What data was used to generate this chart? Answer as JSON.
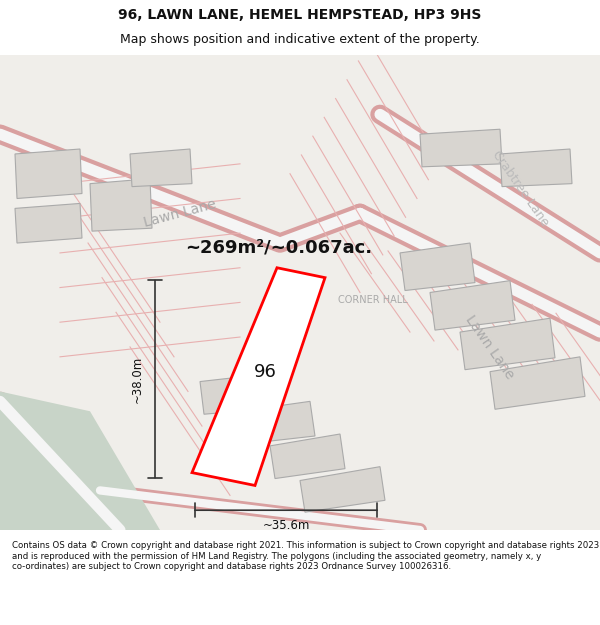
{
  "title_line1": "96, LAWN LANE, HEMEL HEMPSTEAD, HP3 9HS",
  "title_line2": "Map shows position and indicative extent of the property.",
  "footer_text": "Contains OS data © Crown copyright and database right 2021. This information is subject to Crown copyright and database rights 2023 and is reproduced with the permission of HM Land Registry. The polygons (including the associated geometry, namely x, y co-ordinates) are subject to Crown copyright and database rights 2023 Ordnance Survey 100026316.",
  "bg_color": "#f5f5f0",
  "map_bg": "#f0eeea",
  "footer_bg": "#ffffff",
  "road_color_light": "#e8c8c8",
  "road_color_medium": "#d9a0a0",
  "building_color": "#cccccc",
  "building_fill": "#e0ddd8",
  "green_area": "#c8d8c8",
  "road_outline": "#bbbbbb",
  "property_color": "#ff0000",
  "property_fill": "#ffffff",
  "label_96": "96",
  "area_text": "~269m²/~0.067ac.",
  "dim_height": "~38.0m",
  "dim_width": "~35.6m",
  "lawn_lane_label": "Lawn Lane",
  "crabtree_lane_label": "Crabtree Lane",
  "corner_hall_label": "CORNER HALL",
  "lawn_lane_label2": "Lawn Lane"
}
